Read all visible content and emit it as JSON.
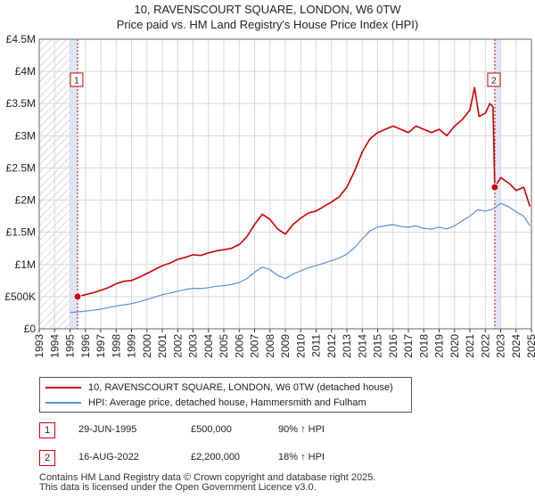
{
  "chart_data": {
    "type": "line",
    "title": "10, RAVENSCOURT SQUARE, LONDON, W6 0TW",
    "subtitle": "Price paid vs. HM Land Registry's House Price Index (HPI)",
    "xlabel": "",
    "ylabel": "",
    "xlim": [
      1993,
      2025
    ],
    "ylim": [
      0,
      4500000
    ],
    "x_ticks": [
      1993,
      1994,
      1995,
      1996,
      1997,
      1998,
      1999,
      2000,
      2001,
      2002,
      2003,
      2004,
      2005,
      2006,
      2007,
      2008,
      2009,
      2010,
      2011,
      2012,
      2013,
      2014,
      2015,
      2016,
      2017,
      2018,
      2019,
      2020,
      2021,
      2022,
      2023,
      2024,
      2025
    ],
    "y_ticks": [
      {
        "value": 0,
        "label": "£0"
      },
      {
        "value": 500000,
        "label": "£500K"
      },
      {
        "value": 1000000,
        "label": "£1M"
      },
      {
        "value": 1500000,
        "label": "£1.5M"
      },
      {
        "value": 2000000,
        "label": "£2M"
      },
      {
        "value": 2500000,
        "label": "£2.5M"
      },
      {
        "value": 3000000,
        "label": "£3M"
      },
      {
        "value": 3500000,
        "label": "£3.5M"
      },
      {
        "value": 4000000,
        "label": "£4M"
      },
      {
        "value": 4500000,
        "label": "£4.5M"
      }
    ],
    "series": [
      {
        "name": "10, RAVENSCOURT SQUARE, LONDON, W6 0TW (detached house)",
        "color": "#cc0000",
        "x": [
          1995.49,
          1996.0,
          1996.5,
          1997.0,
          1997.5,
          1998.0,
          1998.5,
          1999.0,
          1999.5,
          2000.0,
          2000.5,
          2001.0,
          2001.5,
          2002.0,
          2002.5,
          2003.0,
          2003.5,
          2004.0,
          2004.5,
          2005.0,
          2005.5,
          2006.0,
          2006.5,
          2007.0,
          2007.5,
          2008.0,
          2008.5,
          2009.0,
          2009.5,
          2010.0,
          2010.5,
          2011.0,
          2011.5,
          2012.0,
          2012.5,
          2013.0,
          2013.5,
          2014.0,
          2014.5,
          2015.0,
          2015.5,
          2016.0,
          2016.5,
          2017.0,
          2017.5,
          2018.0,
          2018.5,
          2019.0,
          2019.5,
          2020.0,
          2020.5,
          2021.0,
          2021.3,
          2021.6,
          2022.0,
          2022.3,
          2022.5,
          2022.62,
          2023.0,
          2023.3,
          2023.6,
          2024.0,
          2024.5,
          2024.9
        ],
        "values": [
          500000,
          530000,
          560000,
          600000,
          640000,
          700000,
          740000,
          750000,
          800000,
          860000,
          920000,
          980000,
          1020000,
          1080000,
          1110000,
          1150000,
          1140000,
          1180000,
          1210000,
          1230000,
          1250000,
          1310000,
          1430000,
          1620000,
          1780000,
          1700000,
          1550000,
          1470000,
          1620000,
          1720000,
          1800000,
          1830000,
          1900000,
          1970000,
          2050000,
          2200000,
          2450000,
          2750000,
          2950000,
          3050000,
          3100000,
          3150000,
          3100000,
          3050000,
          3150000,
          3100000,
          3050000,
          3100000,
          3000000,
          3150000,
          3250000,
          3400000,
          3750000,
          3300000,
          3350000,
          3500000,
          3450000,
          2200000,
          2350000,
          2300000,
          2250000,
          2150000,
          2200000,
          1900000
        ]
      },
      {
        "name": "HPI: Average price, detached house, Hammersmith and Fulham",
        "color": "#5b8fd6",
        "x": [
          1995.0,
          1995.5,
          1996.0,
          1996.5,
          1997.0,
          1997.5,
          1998.0,
          1998.5,
          1999.0,
          1999.5,
          2000.0,
          2000.5,
          2001.0,
          2001.5,
          2002.0,
          2002.5,
          2003.0,
          2003.5,
          2004.0,
          2004.5,
          2005.0,
          2005.5,
          2006.0,
          2006.5,
          2007.0,
          2007.5,
          2008.0,
          2008.5,
          2009.0,
          2009.5,
          2010.0,
          2010.5,
          2011.0,
          2011.5,
          2012.0,
          2012.5,
          2013.0,
          2013.5,
          2014.0,
          2014.5,
          2015.0,
          2015.5,
          2016.0,
          2016.5,
          2017.0,
          2017.5,
          2018.0,
          2018.5,
          2019.0,
          2019.5,
          2020.0,
          2020.5,
          2021.0,
          2021.5,
          2022.0,
          2022.5,
          2023.0,
          2023.5,
          2024.0,
          2024.5,
          2024.9
        ],
        "values": [
          255000,
          262000,
          275000,
          288000,
          305000,
          330000,
          355000,
          372000,
          390000,
          420000,
          455000,
          490000,
          530000,
          555000,
          585000,
          610000,
          630000,
          625000,
          640000,
          660000,
          670000,
          690000,
          720000,
          780000,
          880000,
          960000,
          920000,
          830000,
          780000,
          850000,
          900000,
          950000,
          980000,
          1020000,
          1060000,
          1100000,
          1160000,
          1260000,
          1400000,
          1520000,
          1580000,
          1600000,
          1620000,
          1590000,
          1580000,
          1600000,
          1560000,
          1550000,
          1580000,
          1550000,
          1600000,
          1680000,
          1750000,
          1850000,
          1830000,
          1860000,
          1950000,
          1900000,
          1820000,
          1750000,
          1600000
        ]
      }
    ],
    "sales": [
      {
        "num": "1",
        "x": 1995.49,
        "value": 500000
      },
      {
        "num": "2",
        "x": 2022.62,
        "value": 2200000
      }
    ],
    "hatch_before": 1995.0,
    "shaded_bands": [
      [
        1995.0,
        1995.49
      ],
      [
        2022.62,
        2022.98
      ]
    ]
  },
  "legend": {
    "property_label": "10, RAVENSCOURT SQUARE, LONDON, W6 0TW (detached house)",
    "hpi_label": "HPI: Average price, detached house, Hammersmith and Fulham",
    "property_color": "#cc0000",
    "hpi_color": "#5b8fd6"
  },
  "annotations": [
    {
      "num": "1",
      "date": "29-JUN-1995",
      "price": "£500,000",
      "hpi": "90% ↑ HPI"
    },
    {
      "num": "2",
      "date": "16-AUG-2022",
      "price": "£2,200,000",
      "hpi": "18% ↑ HPI"
    }
  ],
  "footer": {
    "line1": "Contains HM Land Registry data © Crown copyright and database right 2025.",
    "line2": "This data is licensed under the Open Government Licence v3.0."
  }
}
